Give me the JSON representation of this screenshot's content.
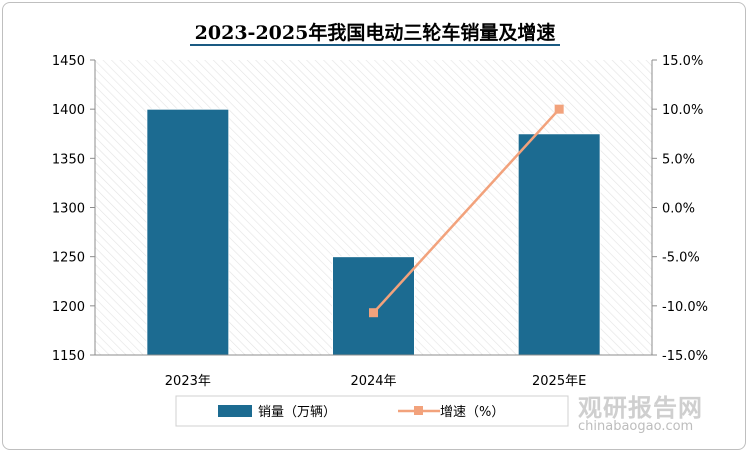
{
  "chart_data": {
    "type": "bar+line",
    "title": "2023-2025年我国电动三轮车销量及增速",
    "categories": [
      "2023年",
      "2024年",
      "2025年E"
    ],
    "series": [
      {
        "name": "销量（万辆）",
        "type": "bar",
        "axis": "left",
        "values": [
          1400,
          1250,
          1375
        ],
        "color": "#1c6b91"
      },
      {
        "name": "增速（%）",
        "type": "line",
        "axis": "right",
        "values": [
          null,
          -10.7,
          10.0
        ],
        "color": "#f2a27c"
      }
    ],
    "y_left": {
      "min": 1150,
      "max": 1450,
      "ticks": [
        "1150",
        "1200",
        "1250",
        "1300",
        "1350",
        "1400",
        "1450"
      ]
    },
    "y_right": {
      "min": -15,
      "max": 15,
      "ticks": [
        "-15.0%",
        "-10.0%",
        "-5.0%",
        "0.0%",
        "5.0%",
        "10.0%",
        "15.0%"
      ]
    },
    "grid": false,
    "legend_position": "bottom"
  },
  "watermark": {
    "text": "观研报告网",
    "url": "chinabaogao.com"
  }
}
